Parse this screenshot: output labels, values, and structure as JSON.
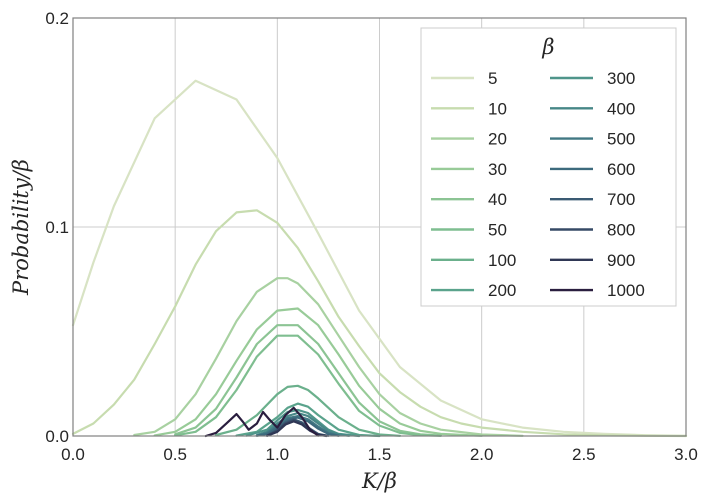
{
  "chart_data": {
    "type": "line",
    "xlabel": "K/β",
    "ylabel": "Probability/β",
    "xlim": [
      0.0,
      3.0
    ],
    "ylim": [
      0.0,
      0.2
    ],
    "xticks": [
      "0.0",
      "0.5",
      "1.0",
      "1.5",
      "2.0",
      "2.5",
      "3.0"
    ],
    "yticks": [
      "0.0",
      "0.1",
      "0.2"
    ],
    "grid": true,
    "legend": {
      "title": "β",
      "placement": "top-right",
      "columns": 2
    },
    "series": [
      {
        "name": "5",
        "color": "#d8e3c4",
        "x": [
          0.0,
          0.1,
          0.2,
          0.4,
          0.6,
          0.8,
          1.0,
          1.2,
          1.4,
          1.6,
          1.8,
          2.0,
          2.2,
          2.4,
          2.6,
          2.8,
          3.0
        ],
        "y": [
          0.053,
          0.083,
          0.11,
          0.152,
          0.17,
          0.161,
          0.133,
          0.097,
          0.06,
          0.033,
          0.017,
          0.008,
          0.004,
          0.002,
          0.001,
          0.0004,
          0.0001
        ]
      },
      {
        "name": "10",
        "color": "#c7dcaf",
        "x": [
          0.0,
          0.1,
          0.2,
          0.3,
          0.4,
          0.5,
          0.6,
          0.7,
          0.8,
          0.9,
          1.0,
          1.1,
          1.2,
          1.3,
          1.4,
          1.5,
          1.6,
          1.7,
          1.8,
          1.9,
          2.0,
          2.2,
          2.4,
          2.6,
          2.8,
          3.0
        ],
        "y": [
          0.001,
          0.006,
          0.015,
          0.027,
          0.044,
          0.062,
          0.082,
          0.098,
          0.107,
          0.108,
          0.102,
          0.09,
          0.074,
          0.057,
          0.043,
          0.03,
          0.021,
          0.014,
          0.009,
          0.006,
          0.004,
          0.002,
          0.0008,
          0.0003,
          0.0001,
          0.0
        ]
      },
      {
        "name": "20",
        "color": "#a8d1a1",
        "x": [
          0.3,
          0.4,
          0.5,
          0.6,
          0.7,
          0.8,
          0.9,
          1.0,
          1.05,
          1.1,
          1.2,
          1.3,
          1.4,
          1.5,
          1.6,
          1.7,
          1.8,
          2.0,
          2.2
        ],
        "y": [
          0.0005,
          0.002,
          0.008,
          0.02,
          0.037,
          0.055,
          0.069,
          0.0755,
          0.0755,
          0.073,
          0.063,
          0.048,
          0.033,
          0.02,
          0.011,
          0.006,
          0.003,
          0.0007,
          0.0001
        ]
      },
      {
        "name": "30",
        "color": "#98cb98",
        "x": [
          0.4,
          0.5,
          0.6,
          0.7,
          0.8,
          0.9,
          1.0,
          1.1,
          1.2,
          1.3,
          1.4,
          1.5,
          1.6,
          1.7,
          1.8,
          2.0
        ],
        "y": [
          0.0003,
          0.002,
          0.008,
          0.02,
          0.036,
          0.051,
          0.06,
          0.061,
          0.053,
          0.039,
          0.024,
          0.013,
          0.006,
          0.0025,
          0.001,
          0.0001
        ]
      },
      {
        "name": "40",
        "color": "#8cc494",
        "x": [
          0.5,
          0.6,
          0.7,
          0.8,
          0.9,
          1.0,
          1.1,
          1.2,
          1.3,
          1.4,
          1.5,
          1.6,
          1.7,
          1.8
        ],
        "y": [
          0.0008,
          0.004,
          0.013,
          0.028,
          0.044,
          0.053,
          0.053,
          0.044,
          0.03,
          0.016,
          0.007,
          0.0025,
          0.0008,
          0.0002
        ]
      },
      {
        "name": "50",
        "color": "#7fbe90",
        "x": [
          0.5,
          0.6,
          0.7,
          0.8,
          0.9,
          1.0,
          1.1,
          1.2,
          1.3,
          1.4,
          1.5,
          1.6,
          1.7,
          1.8
        ],
        "y": [
          0.0003,
          0.002,
          0.009,
          0.022,
          0.038,
          0.048,
          0.048,
          0.039,
          0.025,
          0.012,
          0.005,
          0.0015,
          0.0004,
          0.0001
        ]
      },
      {
        "name": "100",
        "color": "#6bb08c",
        "x": [
          0.7,
          0.8,
          0.9,
          1.0,
          1.05,
          1.1,
          1.15,
          1.2,
          1.3,
          1.4,
          1.5,
          1.6
        ],
        "y": [
          0.0005,
          0.003,
          0.01,
          0.02,
          0.0235,
          0.024,
          0.022,
          0.018,
          0.009,
          0.003,
          0.0007,
          0.0001
        ]
      },
      {
        "name": "200",
        "color": "#5aa38c",
        "x": [
          0.8,
          0.9,
          1.0,
          1.05,
          1.1,
          1.15,
          1.2,
          1.3,
          1.4,
          1.5
        ],
        "y": [
          0.0002,
          0.002,
          0.009,
          0.0135,
          0.0155,
          0.014,
          0.01,
          0.003,
          0.0005,
          0.0
        ]
      },
      {
        "name": "300",
        "color": "#4f958a",
        "x": [
          0.85,
          0.95,
          1.0,
          1.05,
          1.1,
          1.15,
          1.2,
          1.25,
          1.3,
          1.4
        ],
        "y": [
          0.0002,
          0.003,
          0.0075,
          0.0115,
          0.0125,
          0.011,
          0.007,
          0.003,
          0.001,
          0.0
        ]
      },
      {
        "name": "400",
        "color": "#478787",
        "x": [
          0.9,
          0.95,
          1.0,
          1.05,
          1.1,
          1.15,
          1.2,
          1.25,
          1.3,
          1.35
        ],
        "y": [
          0.0005,
          0.002,
          0.006,
          0.0095,
          0.011,
          0.0095,
          0.006,
          0.0025,
          0.0007,
          0.0001
        ]
      },
      {
        "name": "500",
        "color": "#417883",
        "x": [
          0.9,
          0.95,
          1.0,
          1.05,
          1.1,
          1.15,
          1.2,
          1.25,
          1.3
        ],
        "y": [
          0.0002,
          0.0015,
          0.005,
          0.0085,
          0.0095,
          0.008,
          0.0045,
          0.0015,
          0.0003
        ]
      },
      {
        "name": "600",
        "color": "#3d6a7d",
        "x": [
          0.9,
          0.95,
          1.0,
          1.05,
          1.1,
          1.15,
          1.2,
          1.25,
          1.3
        ],
        "y": [
          0.0001,
          0.001,
          0.004,
          0.0078,
          0.0088,
          0.007,
          0.0035,
          0.001,
          0.0001
        ]
      },
      {
        "name": "700",
        "color": "#3a5a73",
        "x": [
          0.95,
          1.0,
          1.04,
          1.08,
          1.12,
          1.16,
          1.2,
          1.25
        ],
        "y": [
          0.0003,
          0.003,
          0.0065,
          0.008,
          0.0065,
          0.0035,
          0.001,
          0.0001
        ]
      },
      {
        "name": "800",
        "color": "#364a66",
        "x": [
          0.95,
          1.0,
          1.04,
          1.08,
          1.12,
          1.16,
          1.2,
          1.24
        ],
        "y": [
          0.0002,
          0.0025,
          0.006,
          0.0075,
          0.006,
          0.003,
          0.0008,
          0.0001
        ]
      },
      {
        "name": "900",
        "color": "#2f3755",
        "x": [
          0.95,
          1.0,
          1.04,
          1.08,
          1.12,
          1.16,
          1.2,
          1.24
        ],
        "y": [
          0.0001,
          0.002,
          0.0055,
          0.007,
          0.0055,
          0.0025,
          0.0006,
          0.0
        ]
      },
      {
        "name": "1000",
        "color": "#2a1e3f",
        "x": [
          0.65,
          0.7,
          0.75,
          0.8,
          0.83,
          0.86,
          0.9,
          0.93,
          0.96,
          1.0,
          1.04,
          1.08,
          1.12,
          1.16,
          1.2
        ],
        "y": [
          0.0,
          0.0015,
          0.006,
          0.0105,
          0.007,
          0.003,
          0.006,
          0.0115,
          0.008,
          0.004,
          0.01,
          0.0135,
          0.009,
          0.003,
          0.0002
        ]
      }
    ]
  }
}
